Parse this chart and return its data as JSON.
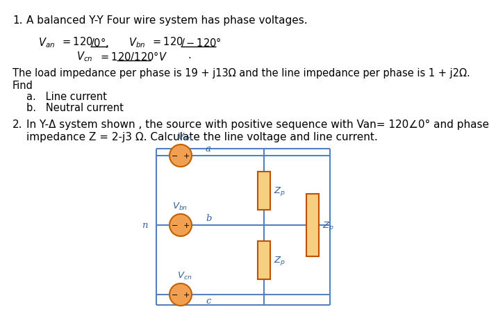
{
  "background_color": "#ffffff",
  "p1_number": "1.",
  "p1_title": "A balanced Y-Y Four wire system has phase voltages.",
  "p1_body": "The load impedance per phase is 19 + j13Ω and the line impedance per phase is 1 + j2Ω.",
  "p1_find": "Find",
  "p1_a": "a.   Line current",
  "p1_b": "b.   Neutral current",
  "p2_number": "2.",
  "p2_line1": "In Y-Δ system shown , the source with positive sequence with Van= 120∠0° and phase",
  "p2_line2": "impedance Z = 2-j3 Ω. Calculate the line voltage and line current.",
  "source_fill": "#f0a050",
  "source_edge": "#c06000",
  "wire_color": "#5080c0",
  "zp_fill": "#f5d080",
  "zp_edge": "#c05000",
  "font_main": 11,
  "font_body": 10.5,
  "font_eq": 10.5,
  "font_circuit": 9.5
}
